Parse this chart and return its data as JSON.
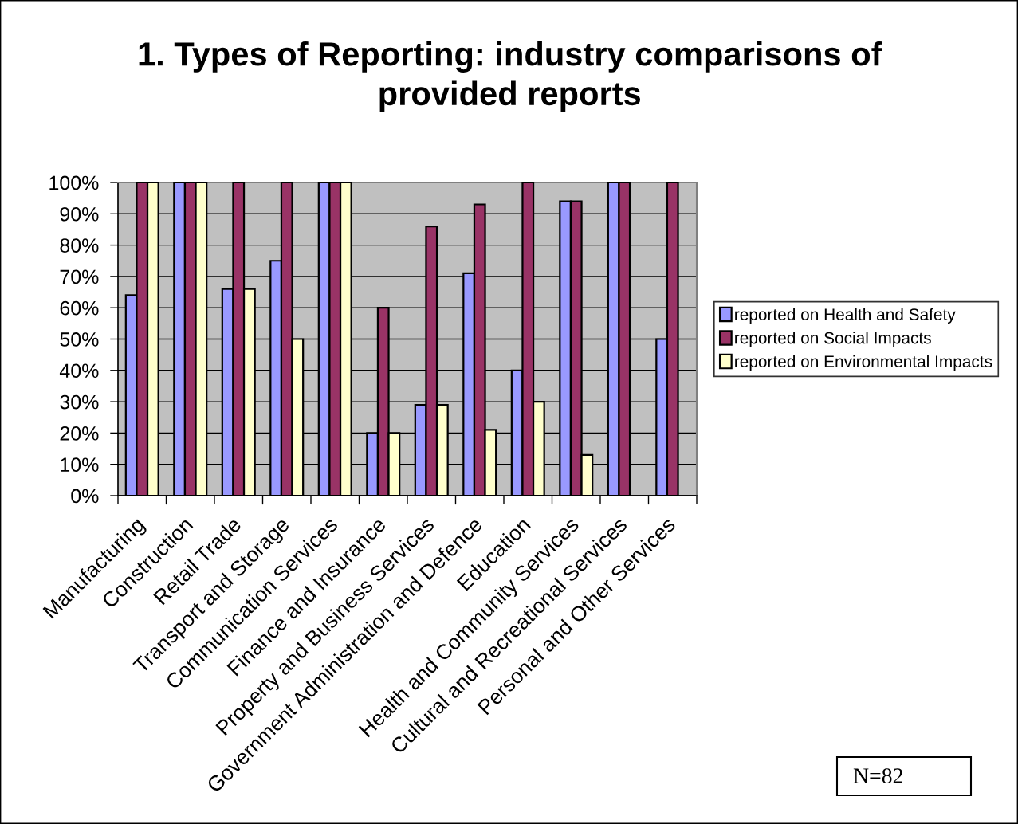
{
  "chart_data": {
    "type": "bar",
    "title": "1. Types of Reporting: industry comparisons of provided reports",
    "categories": [
      "Manufacturing",
      "Construction",
      "Retail Trade",
      "Transport and Storage",
      "Communication Services",
      "Finance and Insurance",
      "Property and Business Services",
      "Government Administration and Defence",
      "Education",
      "Health and Community Services",
      "Cultural and Recreational Services",
      "Personal and Other Services"
    ],
    "series": [
      {
        "name": "reported on Health and Safety",
        "color": "#9999ff",
        "values": [
          64,
          100,
          66,
          75,
          100,
          20,
          29,
          71,
          40,
          94,
          100,
          50
        ]
      },
      {
        "name": "reported on Social Impacts",
        "color": "#993366",
        "values": [
          100,
          100,
          100,
          100,
          100,
          60,
          86,
          93,
          100,
          94,
          100,
          100
        ]
      },
      {
        "name": "reported on Environmental Impacts",
        "color": "#ffffcc",
        "values": [
          100,
          100,
          66,
          50,
          100,
          20,
          29,
          21,
          30,
          13,
          null,
          null
        ]
      }
    ],
    "ylim": [
      0,
      100
    ],
    "yticks": [
      {
        "value": 0,
        "label": "0%"
      },
      {
        "value": 10,
        "label": "10%"
      },
      {
        "value": 20,
        "label": "20%"
      },
      {
        "value": 30,
        "label": "30%"
      },
      {
        "value": 40,
        "label": "40%"
      },
      {
        "value": 50,
        "label": "50%"
      },
      {
        "value": 60,
        "label": "60%"
      },
      {
        "value": 70,
        "label": "70%"
      },
      {
        "value": 80,
        "label": "80%"
      },
      {
        "value": 90,
        "label": "90%"
      },
      {
        "value": 100,
        "label": "100%"
      }
    ],
    "grid": "y",
    "legend": "right",
    "annotations": [
      "N=82"
    ]
  }
}
